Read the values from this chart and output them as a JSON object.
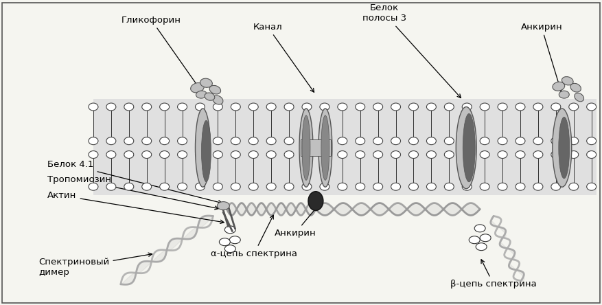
{
  "bg_color": "#f5f5f0",
  "lc": "#333333",
  "head_color": "#ffffff",
  "head_edge": "#444444",
  "gray1": "#c0c0c0",
  "gray2": "#888888",
  "gray3": "#555555",
  "dark_oval": "#666666",
  "ankyrin_dark": "#333333",
  "labels": {
    "glikoforin": "Гликофорин",
    "kanal": "Канал",
    "belok3": "Белок\nполосы 3",
    "ankyrin_top": "Анкирин",
    "belok41": "Белок 4.1",
    "tropomiosin": "Тропомиозин",
    "aktin": "Актин",
    "ankyrin_bot": "Анкирин",
    "spektrin_dimer": "Спектриновый\nдимер",
    "alpha_spektrin": "α-цепь спектрина",
    "beta_spektrin": "β-цепь спектрина"
  },
  "figsize": [
    8.77,
    4.44
  ],
  "dpi": 100
}
